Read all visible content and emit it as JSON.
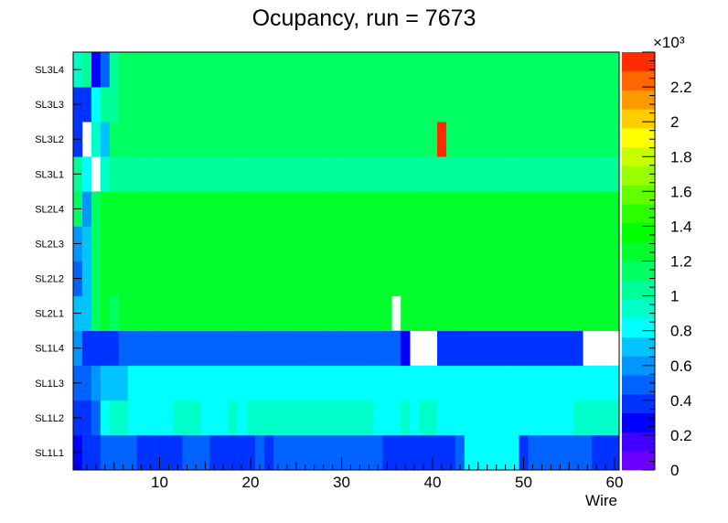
{
  "chart_data": {
    "type": "heatmap",
    "title": "Ocupancy, run = 7673",
    "xlabel": "Wire",
    "ylabel": "",
    "xlim": [
      0.5,
      60.5
    ],
    "x_ticks": [
      "10",
      "20",
      "30",
      "40",
      "50",
      "60"
    ],
    "y_labels": [
      "SL1L1",
      "SL1L2",
      "SL1L3",
      "SL1L4",
      "SL2L1",
      "SL2L2",
      "SL2L3",
      "SL2L4",
      "SL3L1",
      "SL3L2",
      "SL3L3",
      "SL3L4"
    ],
    "z_exponent_label": "×10³",
    "z_scale_labels": [
      "0",
      "0.2",
      "0.4",
      "0.6",
      "0.8",
      "1",
      "1.2",
      "1.4",
      "1.6",
      "1.8",
      "2",
      "2.2"
    ],
    "zlim": [
      0,
      2400
    ],
    "palette": [
      "#6a00ff",
      "#3f00ff",
      "#0000ff",
      "#0033ff",
      "#0062ff",
      "#0095ff",
      "#00c3ff",
      "#00ffff",
      "#00ffc8",
      "#00ff99",
      "#00ff63",
      "#00ff2c",
      "#00ff00",
      "#2cff00",
      "#63ff00",
      "#99ff00",
      "#c8ff00",
      "#ffff00",
      "#ffcc00",
      "#ff9900",
      "#ff6600",
      "#ff2c00"
    ],
    "rows": [
      {
        "layer": "SL1L1",
        "values": [
          300,
          380,
          350,
          450,
          450,
          450,
          500,
          350,
          350,
          350,
          350,
          380,
          450,
          500,
          450,
          350,
          350,
          350,
          400,
          400,
          450,
          380,
          450,
          500,
          500,
          500,
          500,
          450,
          450,
          450,
          450,
          450,
          450,
          500,
          350,
          350,
          380,
          350,
          400,
          400,
          380,
          380,
          500,
          800,
          800,
          850,
          800,
          800,
          800,
          380,
          450,
          450,
          450,
          450,
          450,
          450,
          450,
          380,
          380,
          380
        ]
      },
      {
        "layer": "SL1L2",
        "values": [
          400,
          380,
          500,
          850,
          900,
          900,
          850,
          850,
          850,
          850,
          850,
          900,
          900,
          900,
          850,
          850,
          850,
          900,
          850,
          900,
          900,
          900,
          900,
          900,
          900,
          900,
          900,
          900,
          900,
          900,
          900,
          900,
          900,
          850,
          850,
          850,
          900,
          850,
          900,
          900,
          850,
          850,
          850,
          850,
          850,
          850,
          850,
          850,
          850,
          850,
          850,
          850,
          850,
          850,
          850,
          900,
          900,
          880,
          880,
          900
        ]
      },
      {
        "layer": "SL1L3",
        "values": [
          450,
          500,
          550,
          750,
          750,
          750,
          850,
          850,
          850,
          850,
          850,
          850,
          850,
          850,
          850,
          850,
          850,
          850,
          850,
          850,
          850,
          850,
          850,
          850,
          850,
          850,
          850,
          850,
          850,
          850,
          850,
          850,
          850,
          850,
          850,
          850,
          850,
          850,
          850,
          850,
          850,
          850,
          850,
          850,
          850,
          850,
          850,
          850,
          850,
          850,
          850,
          850,
          850,
          850,
          850,
          850,
          850,
          850,
          850,
          850
        ]
      },
      {
        "layer": "SL1L4",
        "values": [
          600,
          400,
          400,
          400,
          400,
          450,
          450,
          450,
          450,
          450,
          450,
          450,
          450,
          450,
          450,
          450,
          450,
          450,
          450,
          450,
          450,
          450,
          450,
          450,
          450,
          450,
          450,
          450,
          450,
          450,
          450,
          450,
          450,
          450,
          450,
          450,
          250,
          -1,
          -1,
          -1,
          350,
          350,
          350,
          350,
          350,
          350,
          350,
          350,
          350,
          350,
          350,
          350,
          350,
          350,
          350,
          350,
          -1,
          -1,
          -1,
          -1
        ]
      },
      {
        "layer": "SL2L1",
        "values": [
          700,
          750,
          1150,
          1200,
          1150,
          1200,
          1200,
          1200,
          1200,
          1200,
          1200,
          1200,
          1200,
          1200,
          1200,
          1200,
          1200,
          1200,
          1200,
          1200,
          1200,
          1200,
          1200,
          1200,
          1200,
          1200,
          1200,
          1200,
          1200,
          1200,
          1200,
          1200,
          1200,
          1200,
          1200,
          -1,
          1200,
          1200,
          1200,
          1200,
          1200,
          1200,
          1200,
          1200,
          1200,
          1200,
          1200,
          1200,
          1200,
          1200,
          1200,
          1200,
          1200,
          1200,
          1200,
          1200,
          1200,
          1200,
          1200,
          1200
        ]
      },
      {
        "layer": "SL2L2",
        "values": [
          500,
          700,
          1150,
          1200,
          1200,
          1250,
          1250,
          1250,
          1250,
          1250,
          1250,
          1250,
          1250,
          1250,
          1250,
          1250,
          1250,
          1250,
          1250,
          1250,
          1250,
          1250,
          1250,
          1250,
          1250,
          1250,
          1250,
          1250,
          1250,
          1250,
          1250,
          1250,
          1250,
          1250,
          1250,
          1250,
          1250,
          1250,
          1250,
          1250,
          1250,
          1250,
          1250,
          1250,
          1250,
          1250,
          1250,
          1250,
          1250,
          1250,
          1250,
          1250,
          1250,
          1250,
          1250,
          1250,
          1250,
          1250,
          1250,
          1250
        ]
      },
      {
        "layer": "SL2L3",
        "values": [
          600,
          700,
          1150,
          1200,
          1200,
          1250,
          1250,
          1250,
          1250,
          1250,
          1250,
          1250,
          1250,
          1250,
          1250,
          1250,
          1250,
          1250,
          1250,
          1250,
          1250,
          1250,
          1250,
          1250,
          1250,
          1250,
          1250,
          1250,
          1250,
          1250,
          1250,
          1250,
          1250,
          1250,
          1250,
          1250,
          1250,
          1250,
          1250,
          1250,
          1250,
          1250,
          1250,
          1250,
          1250,
          1250,
          1250,
          1250,
          1250,
          1250,
          1250,
          1250,
          1250,
          1250,
          1250,
          1250,
          1250,
          1250,
          1250,
          1250
        ]
      },
      {
        "layer": "SL2L4",
        "values": [
          1100,
          600,
          1150,
          1200,
          1200,
          1250,
          1250,
          1250,
          1250,
          1250,
          1250,
          1250,
          1250,
          1250,
          1250,
          1250,
          1250,
          1250,
          1250,
          1250,
          1250,
          1250,
          1250,
          1250,
          1250,
          1250,
          1250,
          1250,
          1250,
          1250,
          1250,
          1250,
          1250,
          1250,
          1250,
          1250,
          1250,
          1250,
          1250,
          1250,
          1250,
          1250,
          1250,
          1250,
          1250,
          1250,
          1250,
          1250,
          1250,
          1250,
          1250,
          1250,
          1250,
          1250,
          1250,
          1250,
          1250,
          1250,
          1250,
          1250
        ]
      },
      {
        "layer": "SL3L1",
        "values": [
          1050,
          850,
          -1,
          950,
          1000,
          1000,
          1050,
          1050,
          1050,
          1050,
          1050,
          1050,
          1050,
          1050,
          1050,
          1050,
          1050,
          1050,
          1050,
          1050,
          1050,
          1050,
          1050,
          1050,
          1050,
          1050,
          1050,
          1050,
          1050,
          1050,
          1050,
          1050,
          1050,
          1050,
          1050,
          1050,
          1050,
          1050,
          1050,
          1050,
          1050,
          1050,
          1050,
          1050,
          1050,
          1050,
          1050,
          1050,
          1050,
          1050,
          1050,
          1050,
          1050,
          1050,
          1050,
          1050,
          1050,
          1050,
          1050,
          1050
        ]
      },
      {
        "layer": "SL3L2",
        "values": [
          350,
          -1,
          950,
          700,
          1100,
          1100,
          1100,
          1150,
          1100,
          1100,
          1100,
          1100,
          1100,
          1100,
          1100,
          1100,
          1100,
          1100,
          1100,
          1100,
          1100,
          1100,
          1100,
          1100,
          1100,
          1100,
          1100,
          1100,
          1100,
          1100,
          1100,
          1100,
          1100,
          1100,
          1100,
          1100,
          1100,
          1100,
          1100,
          1100,
          2300,
          1100,
          1100,
          1100,
          1100,
          1100,
          1100,
          1100,
          1100,
          1100,
          1100,
          1100,
          1100,
          1100,
          1100,
          1100,
          1100,
          1100,
          1100,
          1100
        ]
      },
      {
        "layer": "SL3L3",
        "values": [
          350,
          400,
          800,
          1000,
          1050,
          1100,
          1100,
          1100,
          1100,
          1100,
          1100,
          1100,
          1100,
          1100,
          1100,
          1100,
          1100,
          1100,
          1100,
          1100,
          1100,
          1100,
          1100,
          1100,
          1100,
          1100,
          1100,
          1100,
          1100,
          1100,
          1100,
          1100,
          1100,
          1100,
          1100,
          1100,
          1100,
          1100,
          1100,
          1100,
          1100,
          1100,
          1100,
          1100,
          1100,
          1100,
          1100,
          1100,
          1100,
          1100,
          1100,
          1100,
          1100,
          1100,
          1100,
          1100,
          1100,
          1100,
          1100,
          1100
        ]
      },
      {
        "layer": "SL3L4",
        "values": [
          900,
          1050,
          300,
          500,
          1050,
          1100,
          1100,
          1100,
          1100,
          1100,
          1100,
          1100,
          1100,
          1100,
          1100,
          1100,
          1100,
          1100,
          1100,
          1100,
          1100,
          1100,
          1100,
          1100,
          1100,
          1100,
          1100,
          1100,
          1100,
          1100,
          1100,
          1100,
          1100,
          1100,
          1100,
          1100,
          1100,
          1100,
          1100,
          1100,
          1100,
          1100,
          1100,
          1100,
          1100,
          1100,
          1100,
          1100,
          1100,
          1100,
          1100,
          1100,
          1100,
          1100,
          1100,
          1100,
          1100,
          1100,
          1100,
          1100
        ]
      }
    ]
  }
}
